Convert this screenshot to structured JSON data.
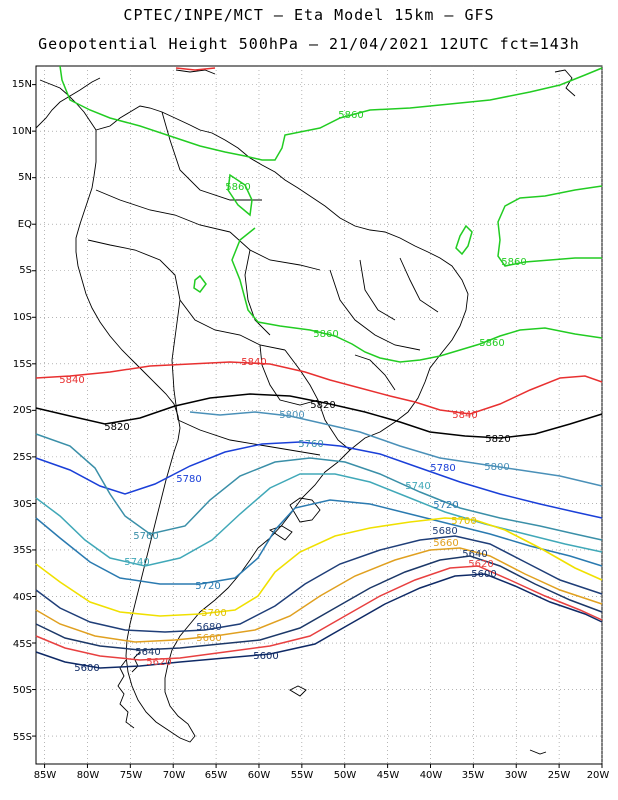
{
  "header": {
    "line1": "CPTEC/INPE/MCT –  Eta Model 15km – GFS",
    "line2": "Geopotential Height 500hPa – 21/04/2021 12UTC fct=143h"
  },
  "map": {
    "lon_range": [
      -86,
      -20
    ],
    "lat_range": [
      -58,
      17
    ],
    "lat_ticks": [
      "15N",
      "10N",
      "5N",
      "EQ",
      "5S",
      "10S",
      "15S",
      "20S",
      "25S",
      "30S",
      "35S",
      "40S",
      "45S",
      "50S",
      "55S"
    ],
    "lon_ticks": [
      "85W",
      "80W",
      "75W",
      "70W",
      "65W",
      "60W",
      "55W",
      "50W",
      "45W",
      "40W",
      "35W",
      "30W",
      "25W",
      "20W"
    ],
    "contours": [
      {
        "value": "5860",
        "color": "#22cc22",
        "labels": [
          "5860",
          "5860",
          "5860",
          "5860",
          "5860"
        ]
      },
      {
        "value": "5840",
        "color": "#e83030",
        "labels": [
          "5840",
          "5840",
          "5840"
        ]
      },
      {
        "value": "5820",
        "color": "#000000",
        "labels": [
          "5820",
          "5820",
          "5820"
        ]
      },
      {
        "value": "5800",
        "color": "#4a90b8",
        "labels": [
          "5800",
          "5800"
        ]
      },
      {
        "value": "5780",
        "color": "#1a3fd8",
        "labels": [
          "5780",
          "5780"
        ]
      },
      {
        "value": "5760",
        "color": "#3a8fa8",
        "labels": [
          "5760",
          "5760"
        ]
      },
      {
        "value": "5740",
        "color": "#40a8b8",
        "labels": [
          "5740",
          "5740"
        ]
      },
      {
        "value": "5720",
        "color": "#2a7ab0",
        "labels": [
          "5720",
          "5720"
        ]
      },
      {
        "value": "5700",
        "color": "#f0e000",
        "labels": [
          "5700",
          "5700"
        ]
      },
      {
        "value": "5680",
        "color": "#1f3e78",
        "labels": [
          "5680",
          "5680"
        ]
      },
      {
        "value": "5660",
        "color": "#e0a020",
        "labels": [
          "5660",
          "5660"
        ]
      },
      {
        "value": "5640",
        "color": "#1c3868",
        "labels": [
          "5640",
          "5640"
        ]
      },
      {
        "value": "5620",
        "color": "#e84040",
        "labels": [
          "5620",
          "5620"
        ]
      },
      {
        "value": "5600",
        "color": "#0f2a66",
        "labels": [
          "5600",
          "5600",
          "5600"
        ]
      }
    ]
  }
}
